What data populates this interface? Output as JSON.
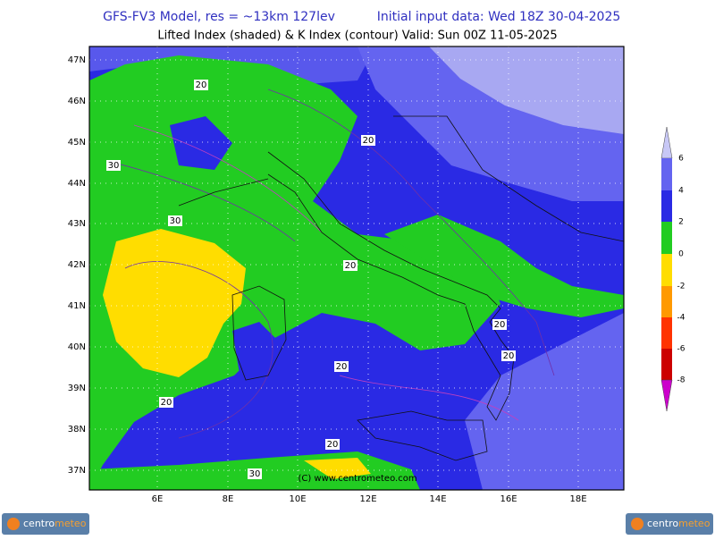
{
  "header": {
    "model": "GFS-FV3 Model, res = ~13km 127lev",
    "init": "Initial input data: Wed 18Z 30-04-2025",
    "subtitle": "Lifted Index (shaded) & K Index (contour) Valid: Sun 00Z 11-05-2025"
  },
  "map": {
    "lat_labels": [
      "47N",
      "46N",
      "45N",
      "44N",
      "43N",
      "42N",
      "41N",
      "40N",
      "39N",
      "38N",
      "37N"
    ],
    "lon_labels": [
      "6E",
      "8E",
      "10E",
      "12E",
      "14E",
      "16E",
      "18E"
    ],
    "contour_labels": [
      "20",
      "20",
      "20",
      "20",
      "20",
      "20",
      "20",
      "20",
      "30",
      "30",
      "30"
    ],
    "copyright": "(C) www.centrometeo.com"
  },
  "legend": {
    "labels": [
      6,
      4,
      2,
      0,
      -2,
      -4,
      -6,
      -8
    ]
  },
  "footer": {
    "logos": [
      {
        "part1": "centro",
        "part2": "meteo"
      },
      {
        "part1": "centro",
        "part2": "meteo"
      }
    ]
  }
}
